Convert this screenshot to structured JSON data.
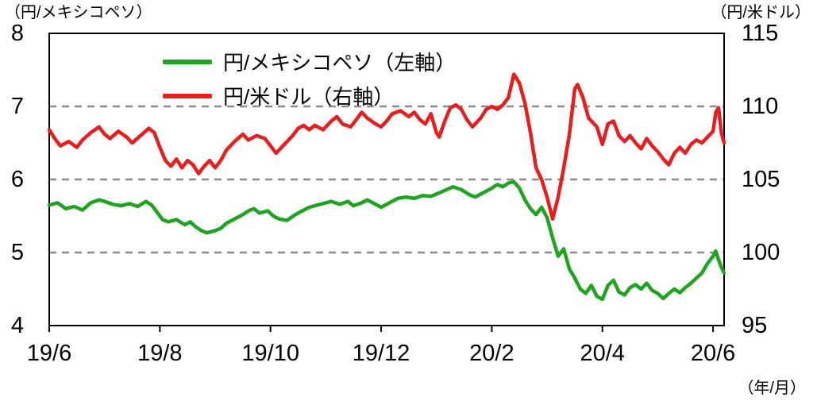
{
  "labels": {
    "left_axis_unit": "（円/メキシコペソ）",
    "right_axis_unit": "（円/米ドル）",
    "x_axis_unit": "（年/月）"
  },
  "legend": [
    {
      "label": "円/メキシコペソ（左軸）",
      "color": "#1fa41f"
    },
    {
      "label": "円/米ドル（右軸）",
      "color": "#e61e1e"
    }
  ],
  "chart_data": {
    "type": "line",
    "title": "",
    "x_unit": "months from 2019/06",
    "x_domain": [
      0,
      12.2
    ],
    "x_ticks": [
      {
        "pos": 0,
        "label": "19/6"
      },
      {
        "pos": 2,
        "label": "19/8"
      },
      {
        "pos": 4,
        "label": "19/10"
      },
      {
        "pos": 6,
        "label": "19/12"
      },
      {
        "pos": 8,
        "label": "20/2"
      },
      {
        "pos": 10,
        "label": "20/4"
      },
      {
        "pos": 12,
        "label": "20/6"
      }
    ],
    "left_axis": {
      "min": 4,
      "max": 8,
      "ticks": [
        4,
        5,
        6,
        7,
        8
      ]
    },
    "right_axis": {
      "min": 95,
      "max": 115,
      "ticks": [
        95,
        100,
        105,
        110,
        115
      ]
    },
    "gridlines_left_values": [
      5,
      6,
      7
    ],
    "grid_color": "#8c8c8c",
    "series": [
      {
        "name": "円/メキシコペソ（左軸）",
        "axis": "left",
        "color": "#1fa41f",
        "points": [
          [
            0,
            5.65
          ],
          [
            0.15,
            5.68
          ],
          [
            0.3,
            5.6
          ],
          [
            0.45,
            5.63
          ],
          [
            0.6,
            5.58
          ],
          [
            0.75,
            5.68
          ],
          [
            0.9,
            5.72
          ],
          [
            1,
            5.7
          ],
          [
            1.15,
            5.66
          ],
          [
            1.3,
            5.64
          ],
          [
            1.45,
            5.67
          ],
          [
            1.6,
            5.63
          ],
          [
            1.75,
            5.7
          ],
          [
            1.85,
            5.65
          ],
          [
            1.95,
            5.55
          ],
          [
            2.05,
            5.45
          ],
          [
            2.15,
            5.42
          ],
          [
            2.3,
            5.45
          ],
          [
            2.45,
            5.38
          ],
          [
            2.55,
            5.42
          ],
          [
            2.65,
            5.35
          ],
          [
            2.75,
            5.3
          ],
          [
            2.85,
            5.27
          ],
          [
            3,
            5.3
          ],
          [
            3.1,
            5.33
          ],
          [
            3.2,
            5.4
          ],
          [
            3.35,
            5.46
          ],
          [
            3.5,
            5.52
          ],
          [
            3.6,
            5.57
          ],
          [
            3.7,
            5.6
          ],
          [
            3.8,
            5.54
          ],
          [
            3.95,
            5.57
          ],
          [
            4.05,
            5.5
          ],
          [
            4.15,
            5.46
          ],
          [
            4.3,
            5.44
          ],
          [
            4.45,
            5.52
          ],
          [
            4.6,
            5.58
          ],
          [
            4.7,
            5.62
          ],
          [
            4.85,
            5.65
          ],
          [
            5,
            5.68
          ],
          [
            5.1,
            5.7
          ],
          [
            5.25,
            5.66
          ],
          [
            5.4,
            5.7
          ],
          [
            5.5,
            5.64
          ],
          [
            5.65,
            5.68
          ],
          [
            5.75,
            5.72
          ],
          [
            5.9,
            5.66
          ],
          [
            6,
            5.62
          ],
          [
            6.15,
            5.68
          ],
          [
            6.3,
            5.74
          ],
          [
            6.45,
            5.76
          ],
          [
            6.6,
            5.74
          ],
          [
            6.75,
            5.78
          ],
          [
            6.9,
            5.77
          ],
          [
            7,
            5.8
          ],
          [
            7.15,
            5.85
          ],
          [
            7.3,
            5.9
          ],
          [
            7.45,
            5.86
          ],
          [
            7.6,
            5.79
          ],
          [
            7.7,
            5.76
          ],
          [
            7.85,
            5.82
          ],
          [
            8,
            5.88
          ],
          [
            8.1,
            5.93
          ],
          [
            8.2,
            5.9
          ],
          [
            8.3,
            5.95
          ],
          [
            8.4,
            5.97
          ],
          [
            8.5,
            5.88
          ],
          [
            8.6,
            5.72
          ],
          [
            8.7,
            5.6
          ],
          [
            8.8,
            5.52
          ],
          [
            8.9,
            5.62
          ],
          [
            9,
            5.48
          ],
          [
            9.1,
            5.2
          ],
          [
            9.2,
            4.95
          ],
          [
            9.3,
            5.05
          ],
          [
            9.4,
            4.78
          ],
          [
            9.5,
            4.65
          ],
          [
            9.6,
            4.5
          ],
          [
            9.7,
            4.44
          ],
          [
            9.8,
            4.55
          ],
          [
            9.9,
            4.4
          ],
          [
            10,
            4.36
          ],
          [
            10.1,
            4.55
          ],
          [
            10.2,
            4.62
          ],
          [
            10.3,
            4.46
          ],
          [
            10.4,
            4.42
          ],
          [
            10.5,
            4.52
          ],
          [
            10.6,
            4.56
          ],
          [
            10.7,
            4.5
          ],
          [
            10.8,
            4.58
          ],
          [
            10.9,
            4.48
          ],
          [
            11,
            4.44
          ],
          [
            11.1,
            4.37
          ],
          [
            11.2,
            4.44
          ],
          [
            11.3,
            4.5
          ],
          [
            11.4,
            4.45
          ],
          [
            11.5,
            4.52
          ],
          [
            11.6,
            4.58
          ],
          [
            11.7,
            4.65
          ],
          [
            11.8,
            4.72
          ],
          [
            11.9,
            4.85
          ],
          [
            12,
            4.95
          ],
          [
            12.05,
            5.02
          ],
          [
            12.1,
            4.9
          ],
          [
            12.15,
            4.8
          ],
          [
            12.2,
            4.72
          ]
        ]
      },
      {
        "name": "円/米ドル（右軸）",
        "axis": "right",
        "color": "#e61e1e",
        "points": [
          [
            0,
            108.4
          ],
          [
            0.1,
            107.8
          ],
          [
            0.2,
            107.3
          ],
          [
            0.35,
            107.6
          ],
          [
            0.5,
            107.2
          ],
          [
            0.6,
            107.7
          ],
          [
            0.75,
            108.2
          ],
          [
            0.9,
            108.6
          ],
          [
            1,
            108.1
          ],
          [
            1.1,
            107.8
          ],
          [
            1.25,
            108.3
          ],
          [
            1.4,
            107.9
          ],
          [
            1.5,
            107.5
          ],
          [
            1.65,
            108
          ],
          [
            1.8,
            108.5
          ],
          [
            1.9,
            108.2
          ],
          [
            2,
            107.2
          ],
          [
            2.1,
            106.3
          ],
          [
            2.2,
            105.9
          ],
          [
            2.3,
            106.4
          ],
          [
            2.4,
            105.8
          ],
          [
            2.5,
            106.3
          ],
          [
            2.6,
            106
          ],
          [
            2.7,
            105.4
          ],
          [
            2.8,
            105.9
          ],
          [
            2.9,
            106.3
          ],
          [
            3,
            105.8
          ],
          [
            3.1,
            106.3
          ],
          [
            3.2,
            107
          ],
          [
            3.35,
            107.6
          ],
          [
            3.5,
            108.1
          ],
          [
            3.6,
            107.7
          ],
          [
            3.75,
            108
          ],
          [
            3.9,
            107.8
          ],
          [
            4,
            107.3
          ],
          [
            4.1,
            106.8
          ],
          [
            4.25,
            107.4
          ],
          [
            4.4,
            108
          ],
          [
            4.5,
            108.5
          ],
          [
            4.6,
            108.7
          ],
          [
            4.7,
            108.4
          ],
          [
            4.8,
            108.7
          ],
          [
            4.95,
            108.4
          ],
          [
            5.1,
            109
          ],
          [
            5.2,
            109.3
          ],
          [
            5.3,
            108.8
          ],
          [
            5.45,
            108.6
          ],
          [
            5.55,
            109.1
          ],
          [
            5.65,
            109.6
          ],
          [
            5.75,
            109.2
          ],
          [
            5.9,
            108.8
          ],
          [
            6,
            108.6
          ],
          [
            6.1,
            109
          ],
          [
            6.2,
            109.5
          ],
          [
            6.35,
            109.7
          ],
          [
            6.5,
            109.3
          ],
          [
            6.6,
            109.6
          ],
          [
            6.7,
            109.1
          ],
          [
            6.8,
            108.8
          ],
          [
            6.9,
            109.5
          ],
          [
            7,
            108.2
          ],
          [
            7.05,
            107.9
          ],
          [
            7.15,
            109
          ],
          [
            7.25,
            109.9
          ],
          [
            7.35,
            110.1
          ],
          [
            7.45,
            109.8
          ],
          [
            7.55,
            109.1
          ],
          [
            7.65,
            108.6
          ],
          [
            7.8,
            109.2
          ],
          [
            7.9,
            109.8
          ],
          [
            8,
            110
          ],
          [
            8.1,
            109.8
          ],
          [
            8.2,
            110.1
          ],
          [
            8.3,
            110.6
          ],
          [
            8.4,
            112.2
          ],
          [
            8.5,
            111.6
          ],
          [
            8.6,
            110.2
          ],
          [
            8.7,
            108.2
          ],
          [
            8.8,
            105.8
          ],
          [
            8.9,
            105
          ],
          [
            9,
            103.8
          ],
          [
            9.1,
            102.3
          ],
          [
            9.2,
            103.8
          ],
          [
            9.3,
            105.8
          ],
          [
            9.4,
            108
          ],
          [
            9.5,
            111.2
          ],
          [
            9.55,
            111.5
          ],
          [
            9.65,
            110.6
          ],
          [
            9.75,
            109.2
          ],
          [
            9.9,
            108.6
          ],
          [
            10,
            107.4
          ],
          [
            10.1,
            108.8
          ],
          [
            10.2,
            109
          ],
          [
            10.3,
            108
          ],
          [
            10.4,
            107.6
          ],
          [
            10.5,
            108
          ],
          [
            10.6,
            107.5
          ],
          [
            10.7,
            107.1
          ],
          [
            10.8,
            107.8
          ],
          [
            10.9,
            107.3
          ],
          [
            11,
            106.9
          ],
          [
            11.1,
            106.4
          ],
          [
            11.2,
            106
          ],
          [
            11.3,
            106.8
          ],
          [
            11.4,
            107.2
          ],
          [
            11.5,
            106.8
          ],
          [
            11.6,
            107.4
          ],
          [
            11.7,
            107.7
          ],
          [
            11.8,
            107.5
          ],
          [
            11.9,
            107.9
          ],
          [
            12,
            108.3
          ],
          [
            12.05,
            109.6
          ],
          [
            12.1,
            109.9
          ],
          [
            12.15,
            108.2
          ],
          [
            12.2,
            107.5
          ]
        ]
      }
    ],
    "legend_position": "top-inside"
  }
}
